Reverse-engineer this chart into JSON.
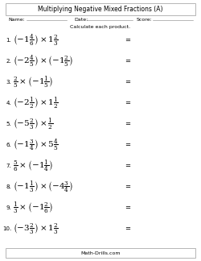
{
  "title": "Multiplying Negative Mixed Fractions (A)",
  "name_label": "Name:",
  "date_label": "Date:",
  "score_label": "Score:",
  "instruction": "Calculate each product.",
  "footer": "Math-Drills.com",
  "problems": [
    {
      "num": "1.",
      "expr": "$\\left(-1\\frac{4}{6}\\right) \\times 1\\frac{2}{3}$",
      "eq": "="
    },
    {
      "num": "2.",
      "expr": "$\\left(-2\\frac{4}{5}\\right) \\times \\left(-1\\frac{2}{5}\\right)$",
      "eq": "="
    },
    {
      "num": "3.",
      "expr": "$\\frac{2}{5} \\times \\left(-1\\frac{1}{5}\\right)$",
      "eq": "="
    },
    {
      "num": "4.",
      "expr": "$\\left(-2\\frac{1}{2}\\right) \\times 1\\frac{1}{2}$",
      "eq": "="
    },
    {
      "num": "5.",
      "expr": "$\\left(-5\\frac{2}{3}\\right) \\times \\frac{1}{2}$",
      "eq": "="
    },
    {
      "num": "6.",
      "expr": "$\\left(-1\\frac{3}{4}\\right) \\times 5\\frac{4}{5}$",
      "eq": "="
    },
    {
      "num": "7.",
      "expr": "$\\frac{5}{6} \\times \\left(-1\\frac{1}{4}\\right)$",
      "eq": "="
    },
    {
      "num": "8.",
      "expr": "$\\left(-1\\frac{1}{3}\\right) \\times \\left(-4\\frac{3}{4}\\right)$",
      "eq": "="
    },
    {
      "num": "9.",
      "expr": "$\\frac{1}{3} \\times \\left(-1\\frac{2}{6}\\right)$",
      "eq": "="
    },
    {
      "num": "10.",
      "expr": "$\\left(-3\\frac{2}{3}\\right) \\times 1\\frac{2}{3}$",
      "eq": "="
    }
  ],
  "bg_color": "#ffffff",
  "text_color": "#000000",
  "border_color": "#cccccc"
}
